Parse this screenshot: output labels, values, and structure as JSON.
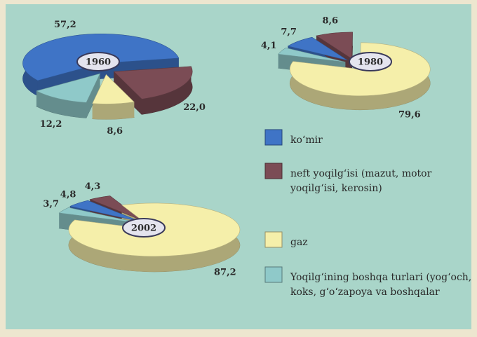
{
  "chart_data": [
    {
      "type": "pie",
      "title": "1960",
      "categories": [
        "ko‘mir",
        "neft yoqilg‘isi (mazut, motor yoqilg‘isi, kerosin)",
        "gaz",
        "Yoqilg‘ining boshqa turlari (yog‘och, koks, g‘o‘zapoya va boshqalar"
      ],
      "colors": [
        "#3f74c6",
        "#7b4c55",
        "#f5efaa",
        "#8fc9c9"
      ],
      "values": [
        57.2,
        22.0,
        8.6,
        12.2
      ],
      "value_labels": [
        "57,2",
        "22,0",
        "8,6",
        "12,2"
      ]
    },
    {
      "type": "pie",
      "title": "1980",
      "categories": [
        "ko‘mir",
        "neft yoqilg‘isi (mazut, motor yoqilg‘isi, kerosin)",
        "gaz",
        "Yoqilg‘ining boshqa turlari (yog‘och, koks, g‘o‘zapoya va boshqalar"
      ],
      "colors": [
        "#3f74c6",
        "#7b4c55",
        "#f5efaa",
        "#8fc9c9"
      ],
      "values": [
        7.7,
        8.6,
        79.6,
        4.1
      ],
      "value_labels": [
        "7,7",
        "8,6",
        "79,6",
        "4,1"
      ]
    },
    {
      "type": "pie",
      "title": "2002",
      "categories": [
        "ko‘mir",
        "neft yoqilg‘isi (mazut, motor yoqilg‘isi, kerosin)",
        "gaz",
        "Yoqilg‘ining boshqa turlari (yog‘och, koks, g‘o‘zapoya va boshqalar"
      ],
      "colors": [
        "#3f74c6",
        "#7b4c55",
        "#f5efaa",
        "#8fc9c9"
      ],
      "values": [
        4.8,
        4.3,
        87.2,
        3.7
      ],
      "value_labels": [
        "4,8",
        "4,3",
        "87,2",
        "3,7"
      ]
    }
  ]
}
